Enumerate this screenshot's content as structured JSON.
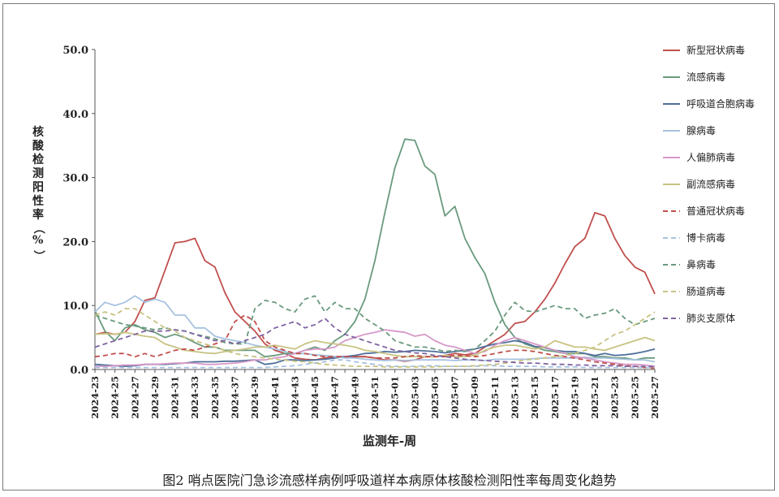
{
  "caption": "图2   哨点医院门急诊流感样病例呼吸道样本病原体核酸检测阳性率每周变化趋势",
  "chart_data": {
    "type": "line",
    "title": "",
    "xlabel": "监测年-周",
    "ylabel": "核酸检测阳性率（%）",
    "ylim": [
      0,
      50
    ],
    "yticks": [
      "0.0",
      "10.0",
      "20.0",
      "30.0",
      "40.0",
      "50.0"
    ],
    "grid": false,
    "legend_position": "right",
    "x": [
      "2024-23",
      "2024-24",
      "2024-25",
      "2024-26",
      "2024-27",
      "2024-28",
      "2024-29",
      "2024-30",
      "2024-31",
      "2024-32",
      "2024-33",
      "2024-34",
      "2024-35",
      "2024-36",
      "2024-37",
      "2024-38",
      "2024-39",
      "2024-40",
      "2024-41",
      "2024-42",
      "2024-43",
      "2024-44",
      "2024-45",
      "2024-46",
      "2024-47",
      "2024-48",
      "2024-49",
      "2024-50",
      "2024-51",
      "2024-52",
      "2025-01",
      "2025-02",
      "2025-03",
      "2025-04",
      "2025-05",
      "2025-06",
      "2025-07",
      "2025-08",
      "2025-09",
      "2025-10",
      "2025-11",
      "2025-12",
      "2025-13",
      "2025-14",
      "2025-15",
      "2025-16",
      "2025-17",
      "2025-18",
      "2025-19",
      "2025-20",
      "2025-21",
      "2025-22",
      "2025-23",
      "2025-24",
      "2025-25",
      "2025-26",
      "2025-27"
    ],
    "xticklabels": [
      "2024-23",
      "2024-25",
      "2024-27",
      "2024-29",
      "2024-31",
      "2024-33",
      "2024-35",
      "2024-37",
      "2024-39",
      "2024-41",
      "2024-43",
      "2024-45",
      "2024-47",
      "2024-49",
      "2024-51",
      "2025-01",
      "2025-03",
      "2025-05",
      "2025-07",
      "2025-09",
      "2025-11",
      "2025-13",
      "2025-15",
      "2025-17",
      "2025-19",
      "2025-21",
      "2025-23",
      "2025-25",
      "2025-27"
    ],
    "series": [
      {
        "name": "新型冠状病毒",
        "color": "#c0504d",
        "dash": false,
        "values": [
          5.5,
          5.8,
          5.5,
          5.8,
          7.5,
          10.8,
          11.2,
          15.5,
          19.8,
          20.0,
          20.5,
          17.0,
          16.0,
          12.0,
          9.0,
          7.5,
          6.0,
          4.0,
          3.0,
          2.5,
          1.8,
          1.6,
          1.5,
          1.8,
          2.0,
          2.0,
          2.0,
          2.0,
          1.8,
          1.5,
          1.5,
          1.3,
          1.5,
          2.0,
          2.0,
          2.2,
          2.5,
          2.3,
          2.5,
          3.5,
          4.5,
          5.5,
          7.2,
          7.5,
          9.0,
          11.0,
          13.5,
          16.5,
          19.2,
          20.5,
          24.5,
          24.0,
          20.5,
          17.8,
          16.0,
          15.2,
          11.8
        ]
      },
      {
        "name": "流感病毒",
        "color": "#6a9a7e",
        "dash": false,
        "values": [
          9.2,
          6.0,
          4.5,
          6.5,
          7.0,
          6.2,
          5.8,
          5.0,
          5.5,
          5.0,
          4.2,
          3.5,
          3.5,
          3.0,
          3.0,
          3.0,
          3.0,
          2.0,
          2.2,
          2.5,
          2.5,
          3.0,
          3.5,
          3.0,
          4.5,
          5.5,
          7.5,
          11.0,
          17.0,
          24.5,
          31.5,
          36.0,
          35.8,
          31.8,
          30.5,
          24.0,
          25.5,
          20.5,
          17.5,
          15.0,
          10.5,
          7.0,
          5.0,
          4.0,
          3.5,
          3.0,
          2.8,
          2.5,
          2.5,
          2.5,
          2.0,
          2.0,
          1.8,
          1.8,
          1.5,
          1.8,
          1.8
        ]
      },
      {
        "name": "呼吸道合胞病毒",
        "color": "#4f6f9a",
        "dash": false,
        "values": [
          0.8,
          0.7,
          0.6,
          0.5,
          0.6,
          0.8,
          0.8,
          0.8,
          0.9,
          1.0,
          1.2,
          1.2,
          1.2,
          1.3,
          1.3,
          1.4,
          1.5,
          0.8,
          1.0,
          1.5,
          1.5,
          1.4,
          1.5,
          1.6,
          1.8,
          2.0,
          2.2,
          2.5,
          2.6,
          2.8,
          2.7,
          2.8,
          3.0,
          2.9,
          2.8,
          2.6,
          2.8,
          3.0,
          3.2,
          3.6,
          4.0,
          4.2,
          4.5,
          4.2,
          3.6,
          3.4,
          3.0,
          2.8,
          2.8,
          2.5,
          2.2,
          2.5,
          2.2,
          2.3,
          2.5,
          2.8,
          3.2
        ]
      },
      {
        "name": "腺病毒",
        "color": "#a7c2e0",
        "dash": false,
        "values": [
          9.0,
          10.5,
          10.0,
          10.5,
          11.5,
          10.5,
          11.0,
          10.5,
          8.5,
          8.5,
          6.5,
          6.5,
          5.2,
          4.8,
          4.5,
          4.2,
          3.8,
          3.5,
          3.2,
          2.8,
          2.5,
          2.5,
          2.3,
          2.2,
          2.0,
          1.8,
          1.8,
          1.6,
          1.5,
          1.4,
          1.5,
          1.4,
          1.5,
          1.5,
          1.5,
          1.5,
          1.4,
          1.5,
          1.5,
          1.4,
          1.6,
          1.6,
          1.6,
          1.6,
          1.7,
          1.8,
          1.8,
          1.8,
          1.8,
          1.9,
          1.8,
          1.8,
          1.7,
          1.6,
          1.5,
          1.5,
          1.2
        ]
      },
      {
        "name": "人偏肺病毒",
        "color": "#d699c8",
        "dash": false,
        "values": [
          0.5,
          0.5,
          0.6,
          0.7,
          0.7,
          0.8,
          0.8,
          0.9,
          1.0,
          1.0,
          1.0,
          0.8,
          0.8,
          0.9,
          1.0,
          1.2,
          1.5,
          1.5,
          1.8,
          2.0,
          2.5,
          3.0,
          3.2,
          3.2,
          3.5,
          4.5,
          5.0,
          5.5,
          5.8,
          6.2,
          6.0,
          5.8,
          5.2,
          5.5,
          4.5,
          3.8,
          3.5,
          3.0,
          2.5,
          2.8,
          3.8,
          4.5,
          5.0,
          4.5,
          4.0,
          3.5,
          3.0,
          2.5,
          2.0,
          1.8,
          1.5,
          1.2,
          1.0,
          0.8,
          0.8,
          0.7,
          0.5
        ]
      },
      {
        "name": "副流感病毒",
        "color": "#c8c382",
        "dash": false,
        "values": [
          5.5,
          5.6,
          5.5,
          5.8,
          5.5,
          5.2,
          5.0,
          4.0,
          3.5,
          3.0,
          2.8,
          2.6,
          2.5,
          2.8,
          3.0,
          3.2,
          3.5,
          3.5,
          3.8,
          3.5,
          3.2,
          4.0,
          4.5,
          4.2,
          4.0,
          3.8,
          3.5,
          3.0,
          2.8,
          2.5,
          2.2,
          2.0,
          2.0,
          2.0,
          2.0,
          2.2,
          2.0,
          2.0,
          2.2,
          3.0,
          3.5,
          3.8,
          3.8,
          3.5,
          3.2,
          3.5,
          4.5,
          4.0,
          3.5,
          3.5,
          3.2,
          3.0,
          3.5,
          4.0,
          4.5,
          5.0,
          4.5
        ]
      },
      {
        "name": "普通冠状病毒",
        "color": "#c0504d",
        "dash": true,
        "values": [
          2.0,
          2.2,
          2.5,
          2.5,
          2.0,
          2.5,
          2.0,
          2.5,
          3.0,
          3.2,
          3.0,
          3.5,
          4.0,
          4.5,
          7.5,
          8.5,
          7.5,
          4.5,
          3.5,
          3.0,
          2.5,
          2.5,
          2.2,
          2.0,
          2.0,
          2.0,
          2.0,
          2.0,
          1.8,
          1.8,
          1.8,
          2.0,
          2.2,
          2.0,
          2.0,
          2.0,
          2.2,
          2.2,
          2.0,
          2.2,
          2.5,
          2.8,
          3.0,
          3.0,
          2.8,
          2.5,
          2.2,
          2.0,
          1.8,
          1.5,
          1.2,
          1.0,
          0.8,
          0.6,
          0.5,
          0.3,
          0.2
        ]
      },
      {
        "name": "博卡病毒",
        "color": "#a7c2e0",
        "dash": true,
        "values": [
          0.3,
          0.3,
          0.3,
          0.3,
          0.3,
          0.3,
          0.3,
          0.3,
          0.3,
          0.3,
          0.3,
          0.3,
          0.3,
          0.3,
          0.3,
          0.3,
          0.3,
          0.3,
          0.4,
          0.5,
          0.6,
          0.8,
          1.0,
          1.2,
          1.5,
          1.5,
          1.2,
          1.0,
          0.8,
          0.6,
          0.5,
          0.5,
          0.5,
          0.6,
          0.6,
          0.5,
          0.5,
          0.5,
          0.5,
          0.6,
          0.6,
          0.5,
          0.5,
          0.5,
          0.5,
          0.4,
          0.4,
          0.4,
          0.4,
          0.3,
          0.3,
          0.3,
          0.3,
          0.3,
          0.3,
          0.3,
          0.3
        ]
      },
      {
        "name": "鼻病毒",
        "color": "#6a9a7e",
        "dash": true,
        "values": [
          8.5,
          8.0,
          7.5,
          7.0,
          6.8,
          6.5,
          6.2,
          6.5,
          6.2,
          6.0,
          5.5,
          5.2,
          4.8,
          4.2,
          4.0,
          4.0,
          9.5,
          10.8,
          10.5,
          9.5,
          9.0,
          11.0,
          11.5,
          9.0,
          10.5,
          9.5,
          9.5,
          8.0,
          7.0,
          6.0,
          4.5,
          4.0,
          3.5,
          3.5,
          3.2,
          2.8,
          3.0,
          2.8,
          3.2,
          4.5,
          6.0,
          8.5,
          10.5,
          9.2,
          9.0,
          9.5,
          10.0,
          9.5,
          9.5,
          8.0,
          8.5,
          8.8,
          9.5,
          8.0,
          7.0,
          7.5,
          8.0
        ]
      },
      {
        "name": "肠道病毒",
        "color": "#c8c382",
        "dash": true,
        "values": [
          8.5,
          9.0,
          8.5,
          9.5,
          9.5,
          8.5,
          7.5,
          6.5,
          6.0,
          5.0,
          4.5,
          4.0,
          3.5,
          3.0,
          2.5,
          2.2,
          2.0,
          1.8,
          1.6,
          1.5,
          1.3,
          1.2,
          1.0,
          0.8,
          0.7,
          0.6,
          0.5,
          0.5,
          0.5,
          0.4,
          0.4,
          0.4,
          0.4,
          0.4,
          0.4,
          0.5,
          0.5,
          0.5,
          0.6,
          0.7,
          0.8,
          1.0,
          1.2,
          1.5,
          1.6,
          1.8,
          2.0,
          2.2,
          2.5,
          3.0,
          3.5,
          4.5,
          5.5,
          6.0,
          7.0,
          8.0,
          9.0
        ]
      },
      {
        "name": "肺炎支原体",
        "color": "#8064a2",
        "dash": true,
        "values": [
          3.5,
          4.0,
          4.5,
          5.0,
          5.5,
          6.0,
          6.0,
          6.0,
          6.2,
          6.0,
          5.5,
          5.0,
          4.5,
          4.5,
          4.0,
          4.5,
          5.0,
          5.5,
          6.5,
          7.0,
          7.5,
          6.5,
          7.0,
          8.0,
          6.5,
          5.5,
          5.0,
          4.5,
          4.0,
          3.5,
          3.0,
          2.8,
          2.6,
          2.5,
          2.2,
          2.0,
          1.8,
          1.6,
          1.5,
          1.4,
          1.3,
          1.2,
          1.1,
          1.0,
          1.0,
          0.9,
          0.8,
          0.8,
          0.7,
          0.7,
          0.6,
          0.6,
          0.6,
          0.5,
          0.5,
          0.5,
          0.5
        ]
      }
    ]
  }
}
